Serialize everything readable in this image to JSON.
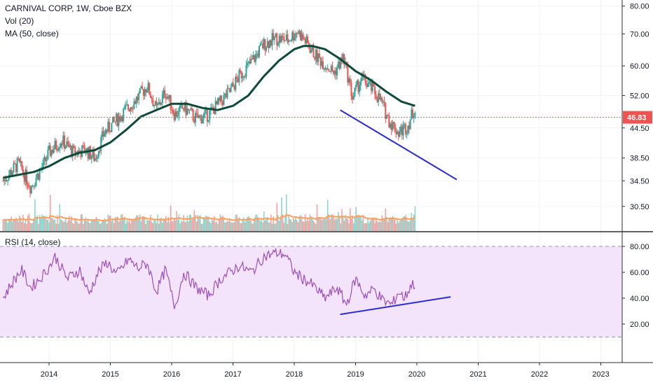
{
  "legend": {
    "symbol_line": "CARNIVAL CORP, 1W, Cboe BZX",
    "volume_line": "Vol (20)",
    "ma_line": "MA (50, close)",
    "rsi_line": "RSI (14, close)"
  },
  "colors": {
    "up_candle": "#26a69a",
    "down_candle": "#ef5350",
    "ma_line": "#0d4a3a",
    "volume_ma": "#ff9f5a",
    "trendline": "#2b2bd6",
    "rsi_line": "#9b4fb8",
    "rsi_band_fill": "#f3e3fb",
    "price_line": "#ef5350",
    "last_price_badge": "#ef5350"
  },
  "chart_data": [
    {
      "type": "line",
      "title": "CARNIVAL CORP, 1W, Cboe BZX",
      "x_tick_labels": [
        "2014",
        "2015",
        "2016",
        "2017",
        "2018",
        "2019",
        "2020",
        "2021",
        "2022",
        "2023"
      ],
      "y_tick_labels": [
        "80.00",
        "70.00",
        "60.00",
        "52.00",
        "44.50",
        "38.50",
        "34.50",
        "30.50"
      ],
      "y_ticks": [
        80,
        70,
        60,
        52,
        44.5,
        38.5,
        34.5,
        30.5
      ],
      "y_scale": "log",
      "ylim": [
        28.5,
        81
      ],
      "xlim": [
        2013.25,
        2023.45
      ],
      "last_price": 46.83,
      "last_price_label": "46.83",
      "series": [
        {
          "name": "Price (close, approx.)",
          "x": [
            2013.25,
            2013.5,
            2013.7,
            2013.9,
            2014.0,
            2014.2,
            2014.4,
            2014.6,
            2014.75,
            2014.9,
            2015.05,
            2015.25,
            2015.45,
            2015.6,
            2015.75,
            2015.9,
            2016.05,
            2016.2,
            2016.4,
            2016.6,
            2016.8,
            2016.95,
            2017.1,
            2017.3,
            2017.5,
            2017.7,
            2017.9,
            2018.05,
            2018.2,
            2018.35,
            2018.5,
            2018.65,
            2018.8,
            2018.95,
            2019.1,
            2019.25,
            2019.4,
            2019.55,
            2019.7,
            2019.85,
            2019.95
          ],
          "y": [
            34.5,
            37.5,
            33.5,
            37.0,
            39.5,
            42.0,
            39.5,
            40.0,
            38.5,
            43.5,
            45.5,
            48.5,
            51.5,
            54.5,
            48.5,
            53.0,
            47.5,
            49.0,
            46.5,
            47.5,
            50.5,
            53.0,
            57.0,
            61.0,
            66.5,
            68.5,
            68.0,
            71.0,
            67.0,
            63.0,
            60.5,
            58.0,
            62.5,
            51.5,
            56.5,
            54.0,
            51.0,
            46.0,
            43.5,
            45.0,
            48.5
          ]
        },
        {
          "name": "MA (50, close)",
          "x": [
            2013.25,
            2013.5,
            2013.75,
            2014.0,
            2014.25,
            2014.5,
            2014.75,
            2015.0,
            2015.25,
            2015.5,
            2015.75,
            2016.0,
            2016.25,
            2016.5,
            2016.75,
            2017.0,
            2017.25,
            2017.5,
            2017.75,
            2018.0,
            2018.15,
            2018.3,
            2018.5,
            2018.75,
            2019.0,
            2019.25,
            2019.5,
            2019.75,
            2019.97
          ],
          "y": [
            35.0,
            35.5,
            36.0,
            37.0,
            38.5,
            39.5,
            40.0,
            41.5,
            44.0,
            47.0,
            48.5,
            50.0,
            50.0,
            49.0,
            48.5,
            49.5,
            52.0,
            57.0,
            61.5,
            65.0,
            66.0,
            66.0,
            65.0,
            62.0,
            58.5,
            56.0,
            53.0,
            50.5,
            49.5
          ]
        },
        {
          "name": "Trendline (price)",
          "x": [
            2018.75,
            2020.65
          ],
          "y": [
            48.5,
            34.7
          ]
        }
      ]
    },
    {
      "type": "bar",
      "title": "Vol (20)",
      "note": "Weekly volume histogram with 20-period volume MA (no numeric scale shown)",
      "series": [
        {
          "name": "Vol (20)",
          "values": []
        }
      ]
    },
    {
      "type": "line",
      "title": "RSI (14, close)",
      "y_tick_labels": [
        "80.00",
        "60.00",
        "40.00",
        "20.00"
      ],
      "y_ticks": [
        80,
        60,
        40,
        20
      ],
      "ylim": [
        0,
        90
      ],
      "band": [
        10,
        80
      ],
      "xlim": [
        2013.25,
        2023.45
      ],
      "series": [
        {
          "name": "RSI (14, close)",
          "x": [
            2013.25,
            2013.4,
            2013.55,
            2013.7,
            2013.85,
            2014.0,
            2014.1,
            2014.3,
            2014.5,
            2014.65,
            2014.8,
            2014.95,
            2015.1,
            2015.3,
            2015.45,
            2015.6,
            2015.75,
            2015.9,
            2016.05,
            2016.2,
            2016.4,
            2016.6,
            2016.8,
            2016.95,
            2017.1,
            2017.3,
            2017.5,
            2017.7,
            2017.85,
            2018.0,
            2018.15,
            2018.3,
            2018.5,
            2018.7,
            2018.85,
            2019.0,
            2019.15,
            2019.3,
            2019.45,
            2019.6,
            2019.7,
            2019.8,
            2019.9,
            2019.95
          ],
          "y": [
            40,
            52,
            62,
            48,
            55,
            64,
            72,
            55,
            62,
            43,
            60,
            68,
            58,
            70,
            63,
            67,
            45,
            62,
            33,
            60,
            48,
            42,
            55,
            60,
            65,
            60,
            72,
            75,
            74,
            60,
            55,
            50,
            40,
            48,
            35,
            55,
            42,
            47,
            38,
            35,
            45,
            40,
            50,
            51
          ]
        },
        {
          "name": "Trendline (RSI)",
          "x": [
            2018.75,
            2020.55
          ],
          "y": [
            27.5,
            41.0
          ]
        }
      ]
    }
  ]
}
